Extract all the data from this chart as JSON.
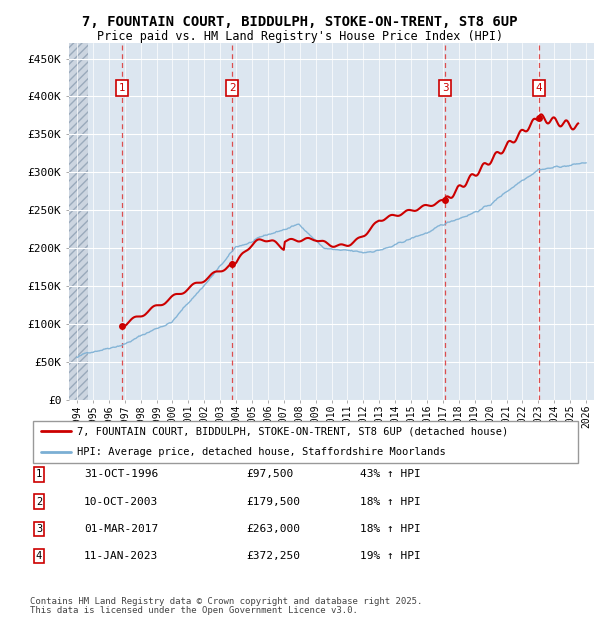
{
  "title": "7, FOUNTAIN COURT, BIDDULPH, STOKE-ON-TRENT, ST8 6UP",
  "subtitle": "Price paid vs. HM Land Registry's House Price Index (HPI)",
  "ylabel_ticks": [
    0,
    50000,
    100000,
    150000,
    200000,
    250000,
    300000,
    350000,
    400000,
    450000
  ],
  "ylabel_labels": [
    "£0",
    "£50K",
    "£100K",
    "£150K",
    "£200K",
    "£250K",
    "£300K",
    "£350K",
    "£400K",
    "£450K"
  ],
  "ylim": [
    0,
    470000
  ],
  "xlim_start": 1993.5,
  "xlim_end": 2026.5,
  "transactions": [
    {
      "num": 1,
      "date": "31-OCT-1996",
      "price": 97500,
      "pct": "43%",
      "year": 1996.83
    },
    {
      "num": 2,
      "date": "10-OCT-2003",
      "price": 179500,
      "pct": "18%",
      "year": 2003.77
    },
    {
      "num": 3,
      "date": "01-MAR-2017",
      "price": 263000,
      "pct": "18%",
      "year": 2017.16
    },
    {
      "num": 4,
      "date": "11-JAN-2023",
      "price": 372250,
      "pct": "19%",
      "year": 2023.03
    }
  ],
  "hpi_color": "#7bafd4",
  "price_color": "#cc0000",
  "hatch_color": "#ccd5e0",
  "plot_background": "#dce6f0",
  "legend_line1": "7, FOUNTAIN COURT, BIDDULPH, STOKE-ON-TRENT, ST8 6UP (detached house)",
  "legend_line2": "HPI: Average price, detached house, Staffordshire Moorlands",
  "footer1": "Contains HM Land Registry data © Crown copyright and database right 2025.",
  "footer2": "This data is licensed under the Open Government Licence v3.0."
}
